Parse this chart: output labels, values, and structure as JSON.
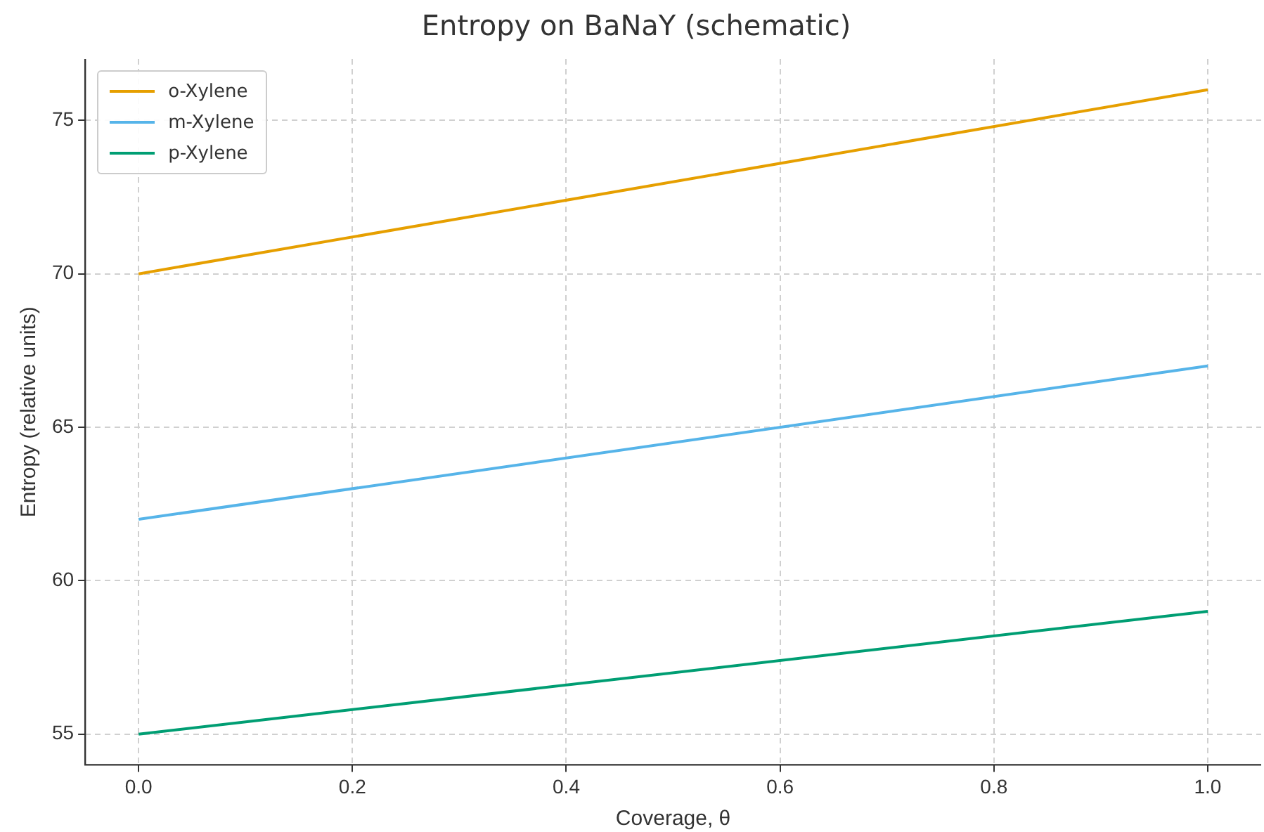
{
  "chart_data": {
    "type": "line",
    "title": "Entropy on BaNaY (schematic)",
    "xlabel": "Coverage, θ",
    "ylabel": "Entropy (relative units)",
    "x": [
      0,
      1
    ],
    "series": [
      {
        "name": "o-Xylene",
        "color": "#e69f00",
        "values": [
          70,
          76
        ]
      },
      {
        "name": "m-Xylene",
        "color": "#56b4e9",
        "values": [
          62,
          67
        ]
      },
      {
        "name": "p-Xylene",
        "color": "#009e73",
        "values": [
          55,
          59
        ]
      }
    ],
    "xlim": [
      -0.05,
      1.05
    ],
    "xticks": [
      {
        "value": 0,
        "label": "0.0"
      },
      {
        "value": 0.2,
        "label": "0.2"
      },
      {
        "value": 0.4,
        "label": "0.4"
      },
      {
        "value": 0.6,
        "label": "0.6"
      },
      {
        "value": 0.8,
        "label": "0.8"
      },
      {
        "value": 1,
        "label": "1.0"
      }
    ],
    "ylim": [
      54,
      77
    ],
    "yticks": [
      55,
      60,
      65,
      70,
      75
    ],
    "grid": true,
    "legend": "top left",
    "marker": "none",
    "line_style": "solid"
  }
}
